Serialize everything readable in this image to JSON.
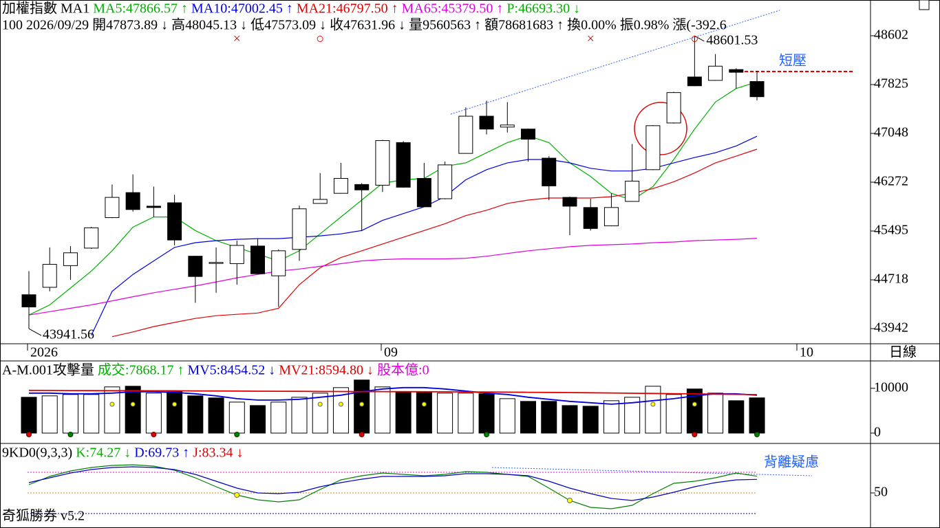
{
  "app": "奇狐勝券 v5.2",
  "chart_data": [
    {
      "type": "candlestick",
      "header": [
        {
          "text": "加權指數 MA1",
          "color": "#000000"
        },
        {
          "text": "MA5:47866.57",
          "color": "#00b000"
        },
        {
          "text": "↑",
          "color": "#00b000"
        },
        {
          "text": "MA10:47002.45",
          "color": "#0000e0"
        },
        {
          "text": "↑",
          "color": "#0000e0"
        },
        {
          "text": "MA21:46797.50",
          "color": "#e00000"
        },
        {
          "text": "↑",
          "color": "#e00000"
        },
        {
          "text": "MA65:45379.50",
          "color": "#e000e0"
        },
        {
          "text": "↑",
          "color": "#e000e0"
        },
        {
          "text": "P:46693.30",
          "color": "#00b000"
        },
        {
          "text": "↓",
          "color": "#00b000"
        }
      ],
      "info": "100 2026/09/29 開47873.89 ↓ 高48045.13 ↓ 低47573.09 ↓ 收47631.96 ↓ 量9560563 ↑ 額78681683 ↑ 換0.00% 振0.98% 漲(-392.6",
      "open": [
        44481,
        44599,
        44944,
        45223,
        45708,
        46106,
        45890,
        45944,
        45094,
        44987,
        44976,
        45256,
        44782,
        45202,
        45934,
        46095,
        46235,
        46224,
        46902,
        46332,
        46009,
        46730,
        47322,
        47149,
        47117,
        46654,
        46030,
        45869,
        45578,
        45966,
        46471,
        47214,
        47946,
        47892,
        48064,
        47873.89
      ],
      "high": [
        44857,
        45234,
        45256,
        45560,
        46235,
        46396,
        46202,
        46073,
        45100,
        45234,
        45342,
        45374,
        45202,
        45901,
        46418,
        46579,
        46256,
        46945,
        46924,
        46579,
        46601,
        47461,
        47569,
        47547,
        47125,
        46687,
        46041,
        46009,
        46095,
        46880,
        47180,
        47710,
        48601.53,
        48311,
        48086,
        48045.13
      ],
      "low": [
        43941.56,
        44535,
        44718,
        45210,
        45700,
        45804,
        45718,
        45266,
        44352,
        44513,
        44642,
        44810,
        44287,
        45019,
        45930,
        46090,
        45492,
        46116,
        46185,
        45875,
        46000,
        46725,
        47031,
        47063,
        46600,
        45987,
        45428,
        45503,
        45570,
        45960,
        46465,
        47205,
        47800,
        47885,
        47763,
        47573.09
      ],
      "close": [
        44287,
        44965,
        45148,
        45546,
        46030,
        45837,
        45869,
        45352,
        44771,
        44995,
        45266,
        44815,
        45180,
        45848,
        45998,
        46332,
        46149,
        46934,
        46192,
        45880,
        46547,
        47322,
        47117,
        47182,
        46956,
        46213,
        45890,
        45535,
        45869,
        46289,
        47171,
        47698,
        47806,
        48118,
        48021,
        47631.96
      ],
      "series": [
        {
          "name": "MA5",
          "color": "#00b000",
          "values": [
            44158,
            44319,
            44588,
            44857,
            45180,
            45557,
            45718,
            45718,
            45503,
            45342,
            45234,
            45126,
            45019,
            45180,
            45449,
            45718,
            45987,
            46256,
            46310,
            46332,
            46525,
            46579,
            46740,
            46902,
            47009,
            46902,
            46579,
            46364,
            46095,
            45987,
            46202,
            46633,
            47117,
            47547,
            47763,
            47866.57
          ]
        },
        {
          "name": "MA10",
          "color": "#0000e0",
          "values": [
            null,
            null,
            null,
            43835,
            44535,
            44804,
            45019,
            45234,
            45309,
            45342,
            45363,
            45374,
            45374,
            45396,
            45417,
            45449,
            45503,
            45664,
            45772,
            45880,
            46041,
            46310,
            46471,
            46579,
            46633,
            46633,
            46579,
            46493,
            46450,
            46450,
            46493,
            46579,
            46665,
            46740,
            46848,
            47002.45
          ]
        },
        {
          "name": "MA21",
          "color": "#e00000",
          "values": [
            null,
            null,
            null,
            null,
            43814,
            43889,
            43975,
            44040,
            44104,
            44147,
            44169,
            44190,
            44266,
            44642,
            44911,
            45073,
            45180,
            45288,
            45396,
            45503,
            45611,
            45740,
            45826,
            45934,
            45987,
            46020,
            46020,
            46020,
            46041,
            46095,
            46170,
            46278,
            46418,
            46579,
            46687,
            46797.5
          ]
        },
        {
          "name": "MA65",
          "color": "#e000e0",
          "values": [
            44158,
            44212,
            44266,
            44319,
            44384,
            44449,
            44513,
            44567,
            44621,
            44685,
            44750,
            44804,
            44857,
            44890,
            44933,
            44976,
            45019,
            45041,
            45052,
            45052,
            45052,
            45062,
            45094,
            45137,
            45180,
            45213,
            45245,
            45267,
            45277,
            45288,
            45309,
            45320,
            45342,
            45352,
            45363,
            45379.5
          ]
        }
      ],
      "ylim": [
        43701,
        49171
      ],
      "yticks": [
        48602,
        47825,
        47048,
        46272,
        45495,
        44718,
        43942
      ],
      "x_labels": [
        "2026",
        "09",
        "10"
      ],
      "period": "日線",
      "signals": [
        "×",
        "○",
        "×",
        "○"
      ],
      "annotation": "短壓"
    },
    {
      "type": "bar",
      "header": [
        {
          "text": "A-M.001攻擊量",
          "color": "#000000"
        },
        {
          "text": "成交:7868.17",
          "color": "#00b000"
        },
        {
          "text": "↑",
          "color": "#00b000"
        },
        {
          "text": "MV5:8454.52",
          "color": "#0000e0"
        },
        {
          "text": "↓",
          "color": "#0000e0"
        },
        {
          "text": "MV21:8594.80",
          "color": "#e00000"
        },
        {
          "text": "↓",
          "color": "#e00000"
        },
        {
          "text": "股本億:0",
          "color": "#e000e0"
        }
      ],
      "values": [
        8000,
        8310,
        8620,
        8620,
        10310,
        10460,
        8920,
        9230,
        8310,
        7850,
        6920,
        6150,
        6920,
        8000,
        8920,
        10150,
        11850,
        10310,
        9230,
        9230,
        8920,
        8920,
        8770,
        7690,
        7080,
        7080,
        6150,
        6000,
        7230,
        8000,
        10460,
        8620,
        9850,
        8920,
        7230,
        7868.17
      ],
      "bar_colors": [
        "#000000",
        "#ffffff",
        "#ffffff",
        "#ffffff",
        "#ffffff",
        "#000000",
        "#ffffff",
        "#000000",
        "#000000",
        "#000000",
        "#ffffff",
        "#000000",
        "#ffffff",
        "#ffffff",
        "#ffffff",
        "#ffffff",
        "#000000",
        "#ffffff",
        "#000000",
        "#000000",
        "#ffffff",
        "#ffffff",
        "#000000",
        "#ffffff",
        "#000000",
        "#000000",
        "#000000",
        "#000000",
        "#ffffff",
        "#ffffff",
        "#ffffff",
        "#ffffff",
        "#000000",
        "#ffffff",
        "#000000",
        "#000000"
      ],
      "series": [
        {
          "name": "MV5",
          "color": "#0000e0",
          "values": [
            8920,
            8920,
            8770,
            8770,
            8920,
            9230,
            9230,
            9080,
            8770,
            8310,
            7690,
            7380,
            7380,
            7540,
            8000,
            8460,
            9230,
            9850,
            10150,
            10150,
            9850,
            9380,
            8920,
            8620,
            8000,
            7540,
            7080,
            6770,
            6460,
            6770,
            7230,
            7690,
            8310,
            8770,
            8770,
            8454.52
          ]
        },
        {
          "name": "MV21",
          "color": "#e00000",
          "values": [
            9540,
            9520,
            9500,
            9480,
            9470,
            9460,
            9450,
            9440,
            9420,
            9400,
            9380,
            9360,
            9340,
            9320,
            9300,
            9280,
            9270,
            9260,
            9250,
            9230,
            9210,
            9190,
            9170,
            9140,
            9110,
            9080,
            9050,
            9000,
            8950,
            8900,
            8850,
            8800,
            8750,
            8700,
            8650,
            8594.8
          ]
        }
      ],
      "ylim": [
        -2000,
        15800
      ],
      "yticks": [
        10000,
        0
      ]
    },
    {
      "type": "line",
      "header": [
        {
          "text": "9KD0(9,3,3)",
          "color": "#000000"
        },
        {
          "text": "K:74.27",
          "color": "#00b000"
        },
        {
          "text": "↓",
          "color": "#00b000"
        },
        {
          "text": "D:69.73",
          "color": "#0000e0"
        },
        {
          "text": "↑",
          "color": "#0000e0"
        },
        {
          "text": "J:83.34",
          "color": "#e00000"
        },
        {
          "text": "↓",
          "color": "#e00000"
        }
      ],
      "series": [
        {
          "name": "K",
          "color": "#008000",
          "values": [
            62,
            74,
            82,
            87,
            90,
            91,
            89,
            83,
            72,
            59,
            47,
            40,
            37,
            40,
            55,
            69,
            75,
            79,
            77,
            75,
            77,
            81,
            80,
            77,
            74,
            57,
            39,
            29,
            27,
            32,
            49,
            64,
            67,
            72,
            79,
            74.27
          ]
        },
        {
          "name": "D",
          "color": "#0000c0",
          "values": [
            65,
            72,
            79,
            84,
            87,
            88,
            87,
            84,
            77,
            67,
            57,
            50,
            49,
            51,
            59,
            65,
            70,
            74,
            74,
            74,
            75,
            78,
            78,
            77,
            75,
            67,
            57,
            49,
            42,
            39,
            44,
            51,
            59,
            65,
            69,
            69.73
          ]
        }
      ],
      "reference_lines": [
        {
          "value": 80,
          "color": "#e000e0"
        },
        {
          "value": 50,
          "color": "#e08000"
        },
        {
          "value": 20,
          "color": "#000080"
        }
      ],
      "ylim": [
        0,
        120
      ],
      "yticks": [
        50
      ],
      "annotation": "背離疑慮"
    }
  ]
}
